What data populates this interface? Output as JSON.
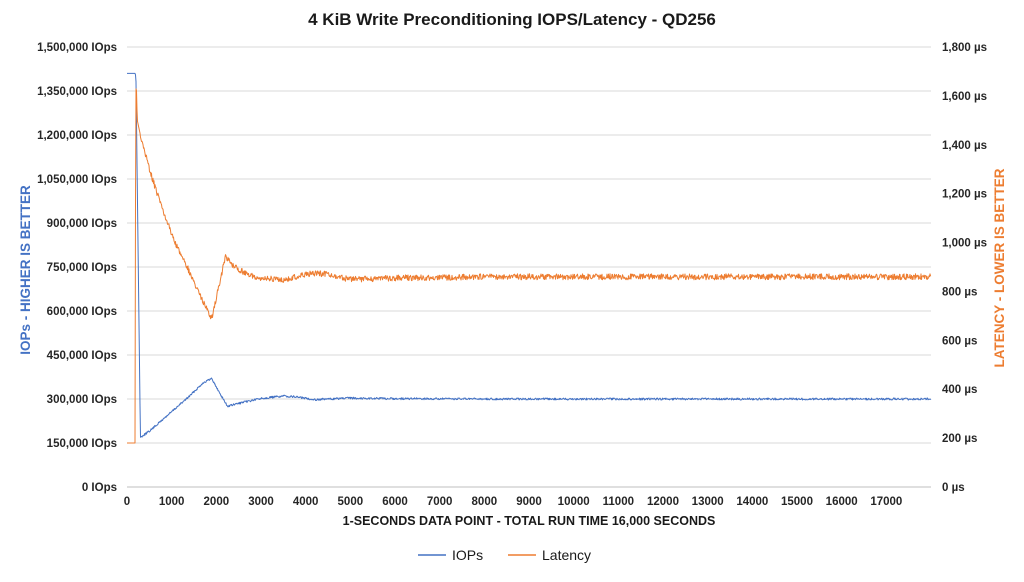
{
  "chart_data": {
    "type": "line",
    "title": "4 KiB Write Preconditioning IOPS/Latency - QD256",
    "xlabel": "1-SECONDS DATA POINT - TOTAL RUN TIME 16,000 SECONDS",
    "ylabel_left": "IOPs - HIGHER IS BETTER",
    "ylabel_right": "LATENCY - LOWER IS BETTER",
    "xlim": [
      0,
      18000
    ],
    "ylim_left": [
      0,
      1500000
    ],
    "ylim_right": [
      0,
      1800
    ],
    "x_ticks": [
      0,
      1000,
      2000,
      3000,
      4000,
      5000,
      6000,
      7000,
      8000,
      9000,
      10000,
      11000,
      12000,
      13000,
      14000,
      15000,
      16000,
      17000
    ],
    "y_ticks_left": [
      "0 IOps",
      "150,000 IOps",
      "300,000 IOps",
      "450,000 IOps",
      "600,000 IOps",
      "750,000 IOps",
      "900,000 IOps",
      "1,050,000 IOps",
      "1,200,000 IOps",
      "1,350,000 IOps",
      "1,500,000 IOps"
    ],
    "y_ticks_left_values": [
      0,
      150000,
      300000,
      450000,
      600000,
      750000,
      900000,
      1050000,
      1200000,
      1350000,
      1500000
    ],
    "y_ticks_right": [
      "0 µs",
      "200 µs",
      "400 µs",
      "600 µs",
      "800 µs",
      "1,000 µs",
      "1,200 µs",
      "1,400 µs",
      "1,600 µs",
      "1,800 µs"
    ],
    "y_ticks_right_values": [
      0,
      200,
      400,
      600,
      800,
      1000,
      1200,
      1400,
      1600,
      1800
    ],
    "grid": true,
    "legend_position": "bottom",
    "colors": {
      "iops": "#4472C4",
      "latency": "#ED7D31"
    },
    "series": [
      {
        "name": "IOPs",
        "axis": "left",
        "x": [
          0,
          180,
          200,
          300,
          500,
          800,
          1100,
          1400,
          1700,
          1900,
          2000,
          2250,
          2500,
          3000,
          3500,
          3800,
          4200,
          5000,
          6000,
          8000,
          10000,
          12000,
          14000,
          16000,
          18000
        ],
        "y": [
          1410000,
          1410000,
          1400000,
          170000,
          190000,
          230000,
          270000,
          310000,
          355000,
          370000,
          340000,
          275000,
          285000,
          302000,
          310000,
          307000,
          298000,
          303000,
          301000,
          300000,
          300000,
          300000,
          300000,
          300000,
          300000
        ]
      },
      {
        "name": "Latency",
        "axis": "right",
        "x": [
          0,
          180,
          195,
          210,
          230,
          300,
          500,
          800,
          1100,
          1400,
          1700,
          1900,
          2200,
          2400,
          2700,
          3000,
          3500,
          4000,
          4300,
          5000,
          6000,
          8000,
          10000,
          12000,
          14000,
          16000,
          18000
        ],
        "y": [
          180,
          180,
          1620,
          1640,
          1500,
          1440,
          1300,
          1130,
          990,
          880,
          760,
          690,
          940,
          900,
          870,
          855,
          845,
          870,
          875,
          850,
          855,
          860,
          860,
          860,
          860,
          860,
          860
        ]
      }
    ]
  }
}
